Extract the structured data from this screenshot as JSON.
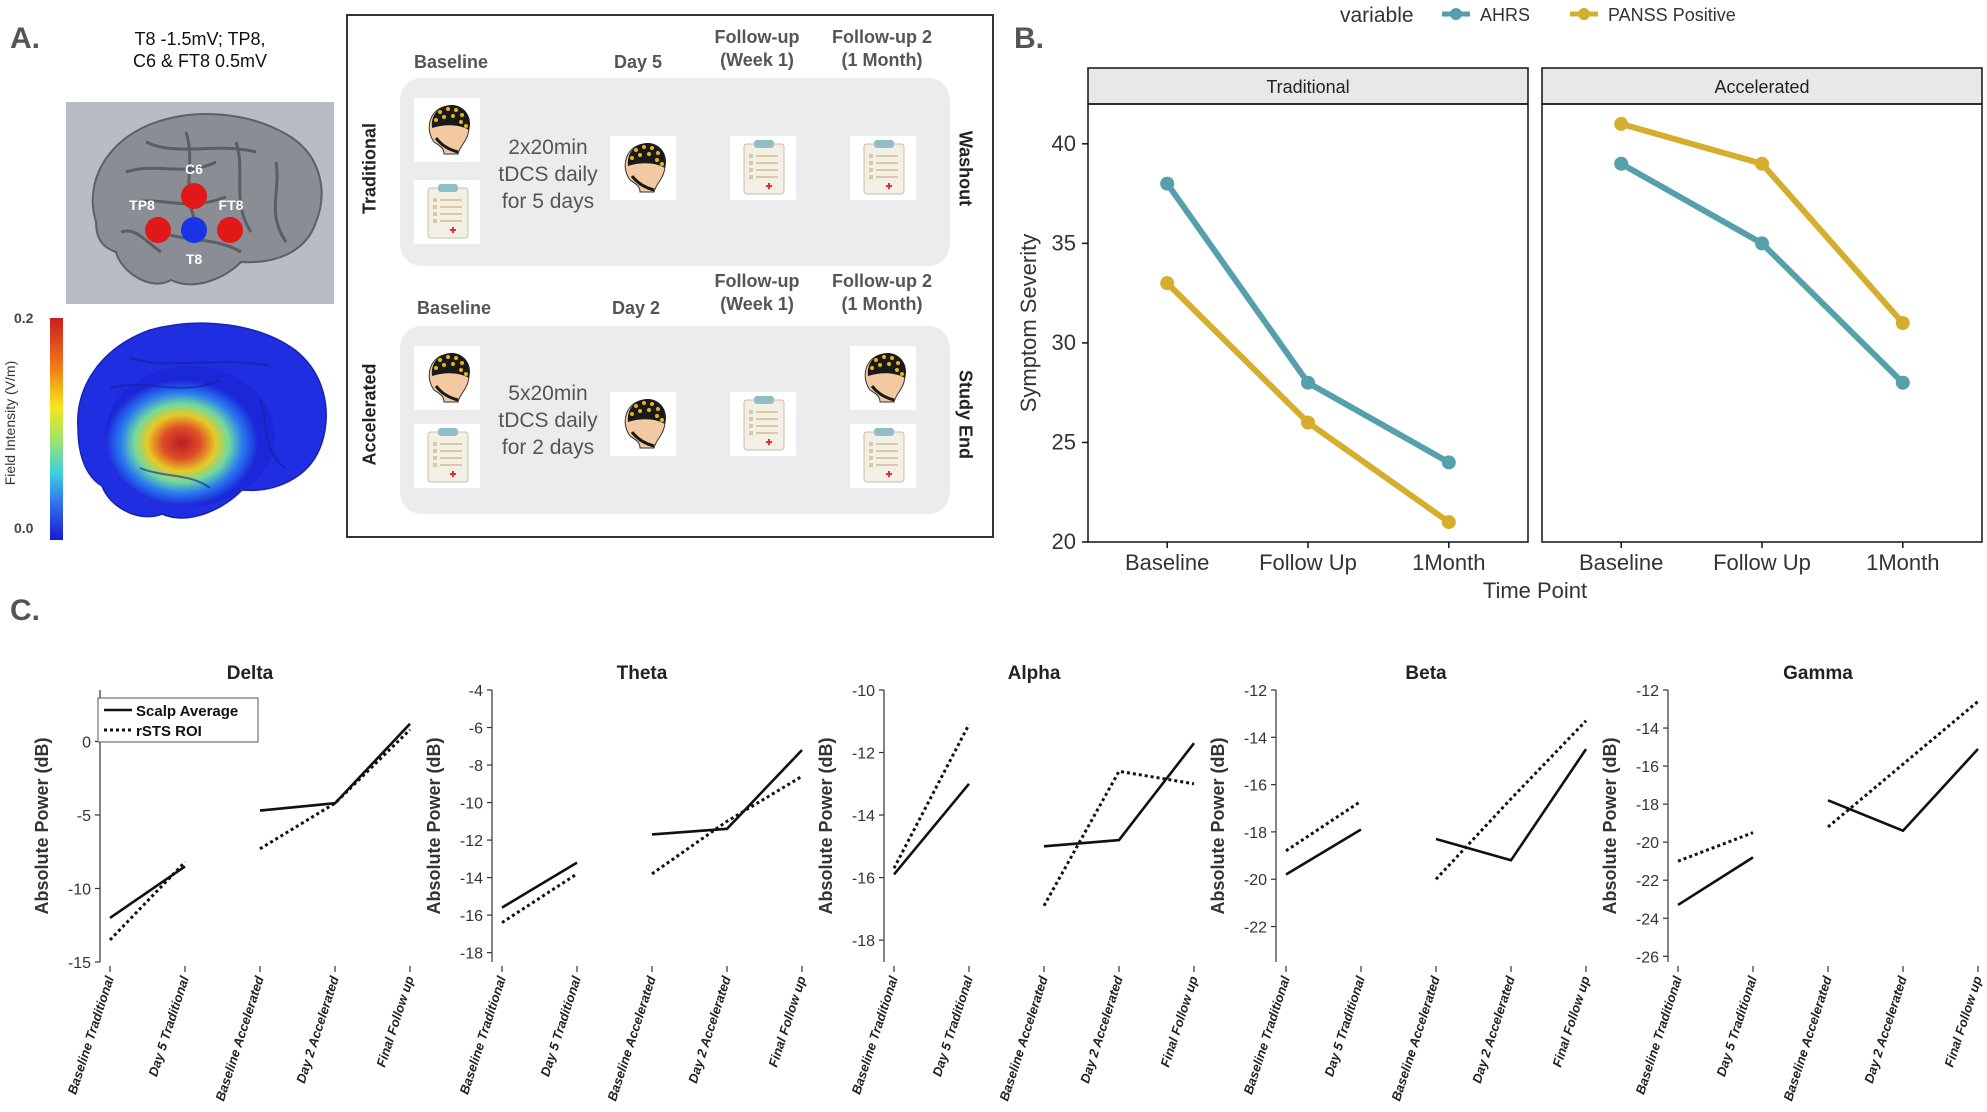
{
  "panel_a": {
    "label": "A.",
    "montage_text": [
      "T8 -1.5mV; TP8,",
      "C6 & FT8 0.5mV"
    ],
    "electrodes": [
      "C6",
      "TP8",
      "FT8",
      "T8"
    ],
    "colorbar": {
      "max": "0.2",
      "min": "0.0",
      "title": "Field Intensity (V/m)"
    },
    "protocol": {
      "traditional": {
        "row_label": "Traditional",
        "timepoints": [
          "Baseline",
          "Day 5",
          "Follow-up",
          "(Week 1)",
          "Follow-up 2",
          "(1 Month)"
        ],
        "dose": [
          "2x20min",
          "tDCS daily",
          "for 5 days"
        ],
        "end_label": "Washout"
      },
      "accelerated": {
        "row_label": "Accelerated",
        "timepoints": [
          "Baseline",
          "Day 2",
          "Follow-up",
          "(Week 1)",
          "Follow-up 2",
          "(1 Month)"
        ],
        "dose": [
          "5x20min",
          "tDCS daily",
          "for 2 days"
        ],
        "end_label": "Study End"
      }
    }
  },
  "panel_b": {
    "label": "B."
  },
  "panel_c": {
    "label": "C."
  },
  "colors": {
    "ahrs": "#56a0ad",
    "panss": "#d4ae2c",
    "strip": "#e8e8e8",
    "protocol_bg": "#ececec"
  },
  "chart_data": [
    {
      "id": "symptom",
      "type": "line",
      "legend_title": "variable",
      "legend": [
        "AHRS",
        "PANSS Positive"
      ],
      "ylabel": "Symptom Severity",
      "xlabel": "Time Point",
      "ylim": [
        20,
        42
      ],
      "yticks": [
        "20",
        "25",
        "30",
        "35",
        "40"
      ],
      "categories": [
        "Baseline",
        "Follow Up",
        "1Month"
      ],
      "facets": [
        {
          "title": "Traditional",
          "series": [
            {
              "name": "AHRS",
              "values": [
                38,
                28,
                24
              ]
            },
            {
              "name": "PANSS Positive",
              "values": [
                33,
                26,
                21
              ]
            }
          ]
        },
        {
          "title": "Accelerated",
          "series": [
            {
              "name": "AHRS",
              "values": [
                39,
                35,
                28
              ]
            },
            {
              "name": "PANSS Positive",
              "values": [
                41,
                39,
                31
              ]
            }
          ]
        }
      ]
    },
    {
      "id": "eeg",
      "type": "line",
      "ylabel": "Absolute Power (dB)",
      "legend": [
        "Scalp Average",
        "rSTS ROI"
      ],
      "categories": [
        "Baseline Traditional",
        "Day 5 Traditional",
        "Baseline Accelerated",
        "Day 2 Accelerated",
        "Final Follow up"
      ],
      "panels": [
        {
          "title": "Delta",
          "ylim": [
            -15,
            3.5
          ],
          "yticks": [
            "0",
            "-5",
            "-10",
            "-15"
          ],
          "scalp": [
            [
              -12.0,
              -8.5
            ],
            [
              -4.7,
              -4.2,
              1.2
            ]
          ],
          "roi": [
            [
              -13.5,
              -8.2
            ],
            [
              -7.3,
              -4.2,
              0.8
            ]
          ]
        },
        {
          "title": "Theta",
          "ylim": [
            -18.5,
            -4
          ],
          "yticks": [
            "-4",
            "-6",
            "-8",
            "-10",
            "-12",
            "-14",
            "-16",
            "-18"
          ],
          "scalp": [
            [
              -15.6,
              -13.2
            ],
            [
              -11.7,
              -11.4,
              -7.2
            ]
          ],
          "roi": [
            [
              -16.4,
              -13.8
            ],
            [
              -13.8,
              -11.0,
              -8.6
            ]
          ]
        },
        {
          "title": "Alpha",
          "ylim": [
            -18.7,
            -10
          ],
          "yticks": [
            "-10",
            "-12",
            "-14",
            "-16",
            "-18"
          ],
          "scalp": [
            [
              -15.9,
              -13.0
            ],
            [
              -15.0,
              -14.8,
              -11.7
            ]
          ],
          "roi": [
            [
              -15.7,
              -11.1
            ],
            [
              -16.9,
              -12.6,
              -13.0
            ]
          ]
        },
        {
          "title": "Beta",
          "ylim": [
            -23.5,
            -12
          ],
          "yticks": [
            "-12",
            "-14",
            "-16",
            "-18",
            "-20",
            "-22"
          ],
          "scalp": [
            [
              -19.8,
              -17.9
            ],
            [
              -18.3,
              -19.2,
              -14.5
            ]
          ],
          "roi": [
            [
              -18.8,
              -16.7
            ],
            [
              -20.0,
              -16.6,
              -13.3
            ]
          ]
        },
        {
          "title": "Gamma",
          "ylim": [
            -26.3,
            -12
          ],
          "yticks": [
            "-12",
            "-14",
            "-16",
            "-18",
            "-20",
            "-22",
            "-24",
            "-26"
          ],
          "scalp": [
            [
              -23.3,
              -20.8
            ],
            [
              -17.8,
              -19.4,
              -15.1
            ]
          ],
          "roi": [
            [
              -21.0,
              -19.5
            ],
            [
              -19.2,
              -15.9,
              -12.6
            ]
          ]
        }
      ]
    }
  ]
}
